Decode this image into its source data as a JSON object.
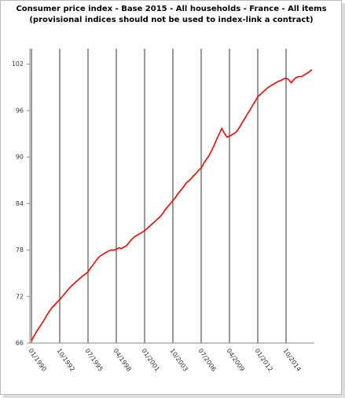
{
  "chart_data": {
    "type": "line",
    "title": "Consumer price index - Base 2015 - All households - France - All items",
    "subtitle": "(provisional indices should not be used to index-link a contract)",
    "categories": [
      "01/1990",
      null,
      null,
      null,
      null,
      null,
      null,
      null,
      null,
      null,
      null,
      "10/1992",
      null,
      null,
      null,
      null,
      null,
      null,
      null,
      null,
      null,
      null,
      "07/1995",
      null,
      null,
      null,
      null,
      null,
      null,
      null,
      null,
      null,
      null,
      "04/1998",
      null,
      null,
      null,
      null,
      null,
      null,
      null,
      null,
      null,
      null,
      "01/2001",
      null,
      null,
      null,
      null,
      null,
      null,
      null,
      null,
      null,
      null,
      "10/2003",
      null,
      null,
      null,
      null,
      null,
      null,
      null,
      null,
      null,
      null,
      "07/2006",
      null,
      null,
      null,
      null,
      null,
      null,
      null,
      null,
      null,
      null,
      "04/2009",
      null,
      null,
      null,
      null,
      null,
      null,
      null,
      null,
      null,
      null,
      "01/2012",
      null,
      null,
      null,
      null,
      null,
      null,
      null,
      null,
      null,
      null,
      "10/2014",
      null,
      null,
      null,
      null,
      null,
      null,
      null,
      null,
      null,
      null
    ],
    "series": [
      {
        "color": "#ff0000",
        "values": [
          66.3,
          66.9,
          67.5,
          68.0,
          68.5,
          69.0,
          69.6,
          70.1,
          70.6,
          70.9,
          71.3,
          71.6,
          72.0,
          72.4,
          72.8,
          73.2,
          73.5,
          73.8,
          74.1,
          74.4,
          74.7,
          74.9,
          75.2,
          75.7,
          76.1,
          76.6,
          77.0,
          77.3,
          77.5,
          77.7,
          77.9,
          78.0,
          78.0,
          78.1,
          78.3,
          78.2,
          78.4,
          78.6,
          79.0,
          79.4,
          79.7,
          79.9,
          80.1,
          80.3,
          80.5,
          80.8,
          81.1,
          81.4,
          81.7,
          82.0,
          82.3,
          82.7,
          83.2,
          83.6,
          84.0,
          84.4,
          84.8,
          85.3,
          85.7,
          86.1,
          86.6,
          86.9,
          87.2,
          87.6,
          87.9,
          88.3,
          88.6,
          89.2,
          89.7,
          90.2,
          90.8,
          91.5,
          92.3,
          93.0,
          93.7,
          93.1,
          92.6,
          92.7,
          92.9,
          93.1,
          93.4,
          93.9,
          94.5,
          95.0,
          95.6,
          96.1,
          96.7,
          97.2,
          97.8,
          98.1,
          98.4,
          98.7,
          99.0,
          99.2,
          99.4,
          99.6,
          99.8,
          99.9,
          100.1,
          100.2,
          100.0,
          99.6,
          100.0,
          100.3,
          100.4,
          100.4,
          100.6,
          100.8,
          101.0,
          101.3
        ]
      }
    ],
    "ylim": [
      66,
      104
    ],
    "yticks": [
      66,
      72,
      78,
      84,
      90,
      96,
      102
    ],
    "grid": true
  }
}
